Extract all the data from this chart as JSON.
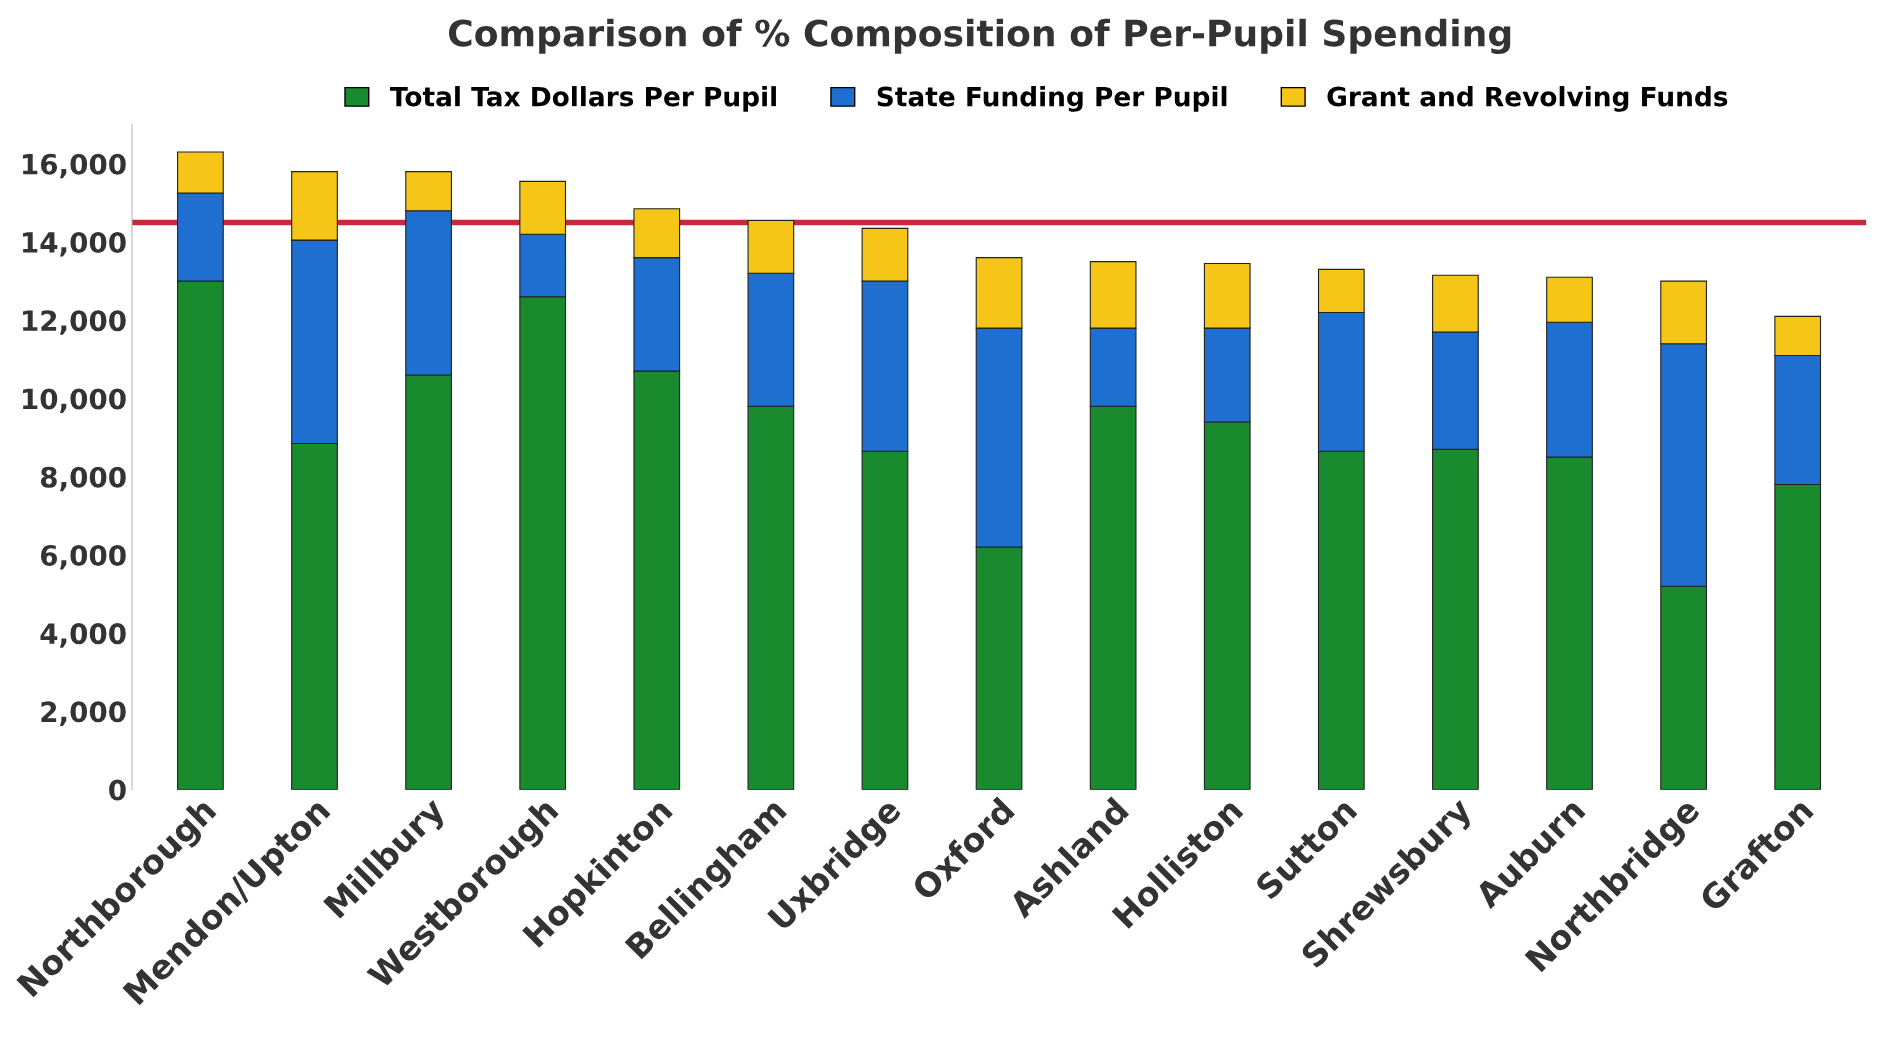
{
  "chart_data": {
    "type": "bar",
    "stacked": true,
    "title": "Comparison of % Composition of Per-Pupil Spending",
    "categories": [
      "Northborough",
      "Mendon/Upton",
      "Millbury",
      "Westborough",
      "Hopkinton",
      "Bellingham",
      "Uxbridge",
      "Oxford",
      "Ashland",
      "Holliston",
      "Sutton",
      "Shrewsbury",
      "Auburn",
      "Northbridge",
      "Grafton"
    ],
    "series": [
      {
        "name": "Total Tax Dollars Per Pupil",
        "color": "#1a8a2e",
        "values": [
          13000,
          8850,
          10600,
          12600,
          10700,
          9800,
          8650,
          6200,
          9800,
          9400,
          8650,
          8700,
          8500,
          5200,
          7800
        ]
      },
      {
        "name": "State Funding Per Pupil",
        "color": "#1f6fd0",
        "values": [
          2250,
          5200,
          4200,
          1600,
          2900,
          3400,
          4350,
          5600,
          2000,
          2400,
          3550,
          3000,
          3450,
          6200,
          3300
        ]
      },
      {
        "name": "Grant and Revolving Funds",
        "color": "#f5c518",
        "values": [
          1050,
          1750,
          1000,
          1350,
          1250,
          1350,
          1350,
          1800,
          1700,
          1650,
          1100,
          1450,
          1150,
          1600,
          1000
        ]
      }
    ],
    "ylim": [
      0,
      17000
    ],
    "yticks": [
      {
        "value": 0,
        "label": "0"
      },
      {
        "value": 2000,
        "label": "2,000"
      },
      {
        "value": 4000,
        "label": "4,000"
      },
      {
        "value": 6000,
        "label": "6,000"
      },
      {
        "value": 8000,
        "label": "8,000"
      },
      {
        "value": 10000,
        "label": "10,000"
      },
      {
        "value": 12000,
        "label": "12,000"
      },
      {
        "value": 14000,
        "label": "14,000"
      },
      {
        "value": 16000,
        "label": "16,000"
      }
    ],
    "ref_lines": [
      {
        "axis": "y",
        "value": 14500,
        "color": "#c8283c"
      }
    ],
    "grid": false,
    "legend": "top"
  }
}
